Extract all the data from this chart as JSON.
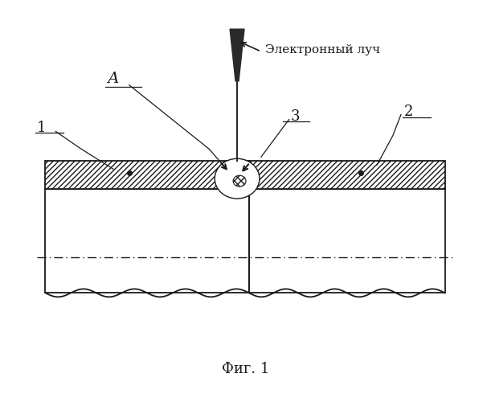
{
  "title": "Фиг. 1",
  "annotation": "Электронный луч",
  "label_A": "А",
  "label_1": "1",
  "label_2": "2",
  "label_3": "3",
  "bg_color": "#ffffff",
  "line_color": "#1a1a1a",
  "figsize": [
    6.11,
    5.0
  ],
  "dpi": 100
}
